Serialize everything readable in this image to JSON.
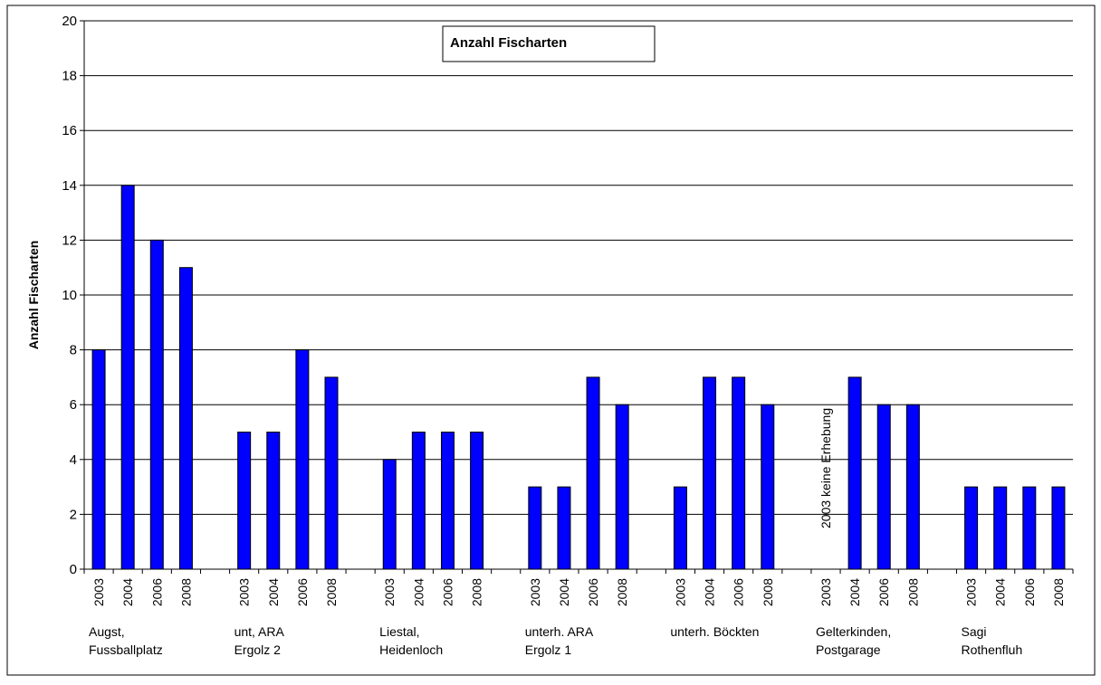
{
  "chart_data": {
    "type": "bar",
    "title": "Anzahl Fischarten",
    "ylabel": "Anzahl Fischarten",
    "xlabel": "",
    "ylim": [
      0,
      20
    ],
    "ytick_step": 2,
    "grid": true,
    "legend": "none",
    "bar_color": "#0000FF",
    "groups": [
      {
        "label_lines": [
          "Augst,",
          "Fussballplatz"
        ],
        "bars": [
          {
            "year": "2003",
            "value": 8
          },
          {
            "year": "2004",
            "value": 14
          },
          {
            "year": "2006",
            "value": 12
          },
          {
            "year": "2008",
            "value": 11
          }
        ]
      },
      {
        "label_lines": [
          "unt, ARA",
          "Ergolz 2"
        ],
        "bars": [
          {
            "year": "2003",
            "value": 5
          },
          {
            "year": "2004",
            "value": 5
          },
          {
            "year": "2006",
            "value": 8
          },
          {
            "year": "2008",
            "value": 7
          }
        ]
      },
      {
        "label_lines": [
          "Liestal,",
          "Heidenloch"
        ],
        "bars": [
          {
            "year": "2003",
            "value": 4
          },
          {
            "year": "2004",
            "value": 5
          },
          {
            "year": "2006",
            "value": 5
          },
          {
            "year": "2008",
            "value": 5
          }
        ]
      },
      {
        "label_lines": [
          "unterh. ARA",
          "Ergolz 1"
        ],
        "bars": [
          {
            "year": "2003",
            "value": 3
          },
          {
            "year": "2004",
            "value": 3
          },
          {
            "year": "2006",
            "value": 7
          },
          {
            "year": "2008",
            "value": 6
          }
        ]
      },
      {
        "label_lines": [
          "unterh. Böckten"
        ],
        "bars": [
          {
            "year": "2003",
            "value": 3
          },
          {
            "year": "2004",
            "value": 7
          },
          {
            "year": "2006",
            "value": 7
          },
          {
            "year": "2008",
            "value": 6
          }
        ]
      },
      {
        "label_lines": [
          "Gelterkinden,",
          "Postgarage"
        ],
        "bars": [
          {
            "year": "2003",
            "value": null
          },
          {
            "year": "2004",
            "value": 7
          },
          {
            "year": "2006",
            "value": 6
          },
          {
            "year": "2008",
            "value": 6
          }
        ]
      },
      {
        "label_lines": [
          "Sagi",
          "Rothenfluh"
        ],
        "bars": [
          {
            "year": "2003",
            "value": 3
          },
          {
            "year": "2004",
            "value": 3
          },
          {
            "year": "2006",
            "value": 3
          },
          {
            "year": "2008",
            "value": 3
          }
        ]
      }
    ],
    "annotations": [
      {
        "text": "2003 keine Erhebung",
        "group": 5,
        "bar": 0,
        "orientation": "vertical"
      }
    ]
  }
}
